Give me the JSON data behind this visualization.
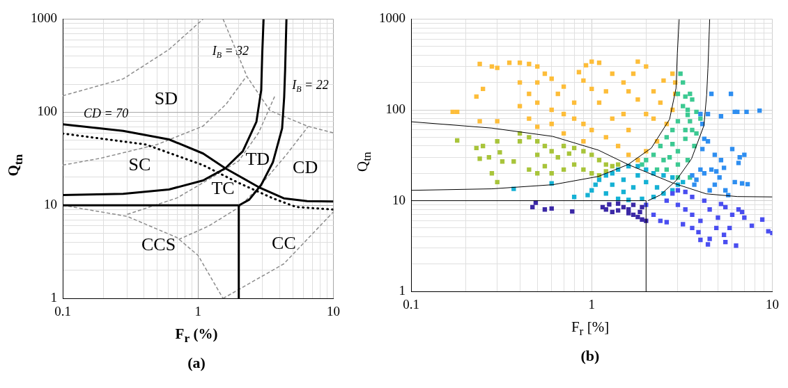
{
  "chart_data": [
    {
      "type": "line",
      "title": "(a)",
      "xlabel": "F$_{r}$ (%)",
      "ylabel": "Q$_{tn}$",
      "log": "xy",
      "grid": true,
      "xlim": [
        0.1,
        10
      ],
      "ylim": [
        1,
        1000
      ],
      "xticks": [
        0.1,
        {
          "value": 0.2,
          "label": null
        },
        {
          "value": 0.3,
          "label": null
        },
        {
          "value": 0.4,
          "label": null
        },
        {
          "value": 0.5,
          "label": null
        },
        {
          "value": 0.6,
          "label": null
        },
        {
          "value": 0.7,
          "label": null
        },
        {
          "value": 0.8,
          "label": null
        },
        {
          "value": 0.9,
          "label": null
        },
        1,
        {
          "value": 2,
          "label": null
        },
        {
          "value": 3,
          "label": null
        },
        {
          "value": 4,
          "label": null
        },
        {
          "value": 5,
          "label": null
        },
        {
          "value": 6,
          "label": null
        },
        {
          "value": 7,
          "label": null
        },
        {
          "value": 8,
          "label": null
        },
        {
          "value": 9,
          "label": null
        },
        10
      ],
      "yticks": [
        1,
        {
          "value": 2,
          "label": null
        },
        {
          "value": 3,
          "label": null
        },
        {
          "value": 4,
          "label": null
        },
        {
          "value": 5,
          "label": null
        },
        {
          "value": 6,
          "label": null
        },
        {
          "value": 7,
          "label": null
        },
        {
          "value": 8,
          "label": null
        },
        {
          "value": 9,
          "label": null
        },
        10,
        {
          "value": 20,
          "label": null
        },
        {
          "value": 30,
          "label": null
        },
        {
          "value": 40,
          "label": null
        },
        {
          "value": 50,
          "label": null
        },
        {
          "value": 60,
          "label": null
        },
        {
          "value": 70,
          "label": null
        },
        {
          "value": 80,
          "label": null
        },
        {
          "value": 90,
          "label": null
        },
        100,
        {
          "value": 200,
          "label": null
        },
        {
          "value": 300,
          "label": null
        },
        {
          "value": 400,
          "label": null
        },
        {
          "value": 500,
          "label": null
        },
        {
          "value": 600,
          "label": null
        },
        {
          "value": 700,
          "label": null
        },
        {
          "value": 800,
          "label": null
        },
        {
          "value": 900,
          "label": null
        },
        1000
      ],
      "series": [
        {
          "color": "#8c8c8c",
          "line_style": "dashed",
          "marker": "none",
          "x": [
            0.1,
            0.28,
            0.61,
            1.09
          ],
          "values": [
            150,
            228,
            471,
            1000
          ]
        },
        {
          "color": "#8c8c8c",
          "line_style": "dashed",
          "marker": "none",
          "x": [
            1.53,
            2.3,
            3.4,
            6.4,
            10
          ],
          "values": [
            1000,
            241,
            104,
            71,
            60
          ]
        },
        {
          "color": "#8c8c8c",
          "line_style": "dashed",
          "marker": "none",
          "x": [
            0.1,
            0.19,
            0.5,
            1.09,
            1.62,
            2.27
          ],
          "values": [
            27,
            32,
            45,
            71,
            123,
            241
          ]
        },
        {
          "color": "#8c8c8c",
          "line_style": "dashed",
          "marker": "none",
          "x": [
            0.3,
            0.7,
            1.2,
            2.0,
            2.8,
            3.7
          ],
          "values": [
            8,
            12,
            19,
            30,
            60,
            150
          ]
        },
        {
          "color": "#8c8c8c",
          "line_style": "dashed",
          "marker": "none",
          "x": [
            0.1,
            0.3,
            0.7,
            1.0,
            1.53
          ],
          "values": [
            10,
            7.6,
            4.5,
            2.9,
            1
          ]
        },
        {
          "color": "#8c8c8c",
          "line_style": "dashed",
          "marker": "none",
          "x": [
            0.72,
            1.2,
            2.0,
            2.8,
            4.5,
            6.5
          ],
          "values": [
            4.3,
            6,
            9.5,
            15.5,
            35,
            70
          ]
        },
        {
          "color": "#8c8c8c",
          "line_style": "dashed",
          "marker": "none",
          "x": [
            1.53,
            4.3,
            10
          ],
          "values": [
            1,
            2.35,
            8.5
          ]
        },
        {
          "color": "#000000",
          "line_style": "dotted",
          "marker": "none",
          "x": [
            0.1,
            0.41,
            1.09,
            1.98,
            3.57,
            5.3,
            10
          ],
          "values": [
            59,
            45,
            27,
            17.5,
            11.9,
            9.6,
            9.0
          ]
        },
        {
          "color": "#000000",
          "line_style": "solid",
          "marker": "none",
          "x": [
            0.1,
            0.28,
            0.61,
            1.09,
            1.59,
            2.8,
            4.3,
            6.4,
            10
          ],
          "values": [
            74,
            63,
            51,
            36,
            25,
            15.7,
            11.9,
            11.1,
            11
          ]
        },
        {
          "color": "#000000",
          "line_style": "solid",
          "marker": "none",
          "x": [
            0.1,
            0.28,
            0.61,
            1.09,
            1.59,
            2.14,
            2.7,
            2.93,
            2.98,
            3.05
          ],
          "values": [
            12.9,
            13.3,
            14.8,
            18.5,
            25,
            38,
            79,
            173,
            421,
            1000
          ]
        },
        {
          "color": "#000000",
          "line_style": "solid",
          "marker": "none",
          "x": [
            2.01,
            2.39,
            2.93,
            3.57,
            4.18,
            4.33,
            4.4,
            4.5
          ],
          "values": [
            10,
            11.5,
            16.6,
            28.9,
            67,
            146,
            285,
            1000
          ]
        },
        {
          "color": "#000000",
          "line_style": "solid",
          "marker": "none",
          "x": [
            0.1,
            2
          ],
          "values": [
            10,
            10
          ]
        },
        {
          "color": "#000000",
          "line_style": "solid",
          "marker": "none",
          "x": [
            2,
            2
          ],
          "values": [
            1,
            10
          ]
        }
      ],
      "annotations": [
        "SD",
        "SC",
        "TD",
        "CD",
        "TC",
        "CCS",
        "CC",
        "CD = 70",
        "I$_{B}$ = 32",
        "I$_{B}$ = 22"
      ]
    },
    {
      "type": "scatter",
      "title": "(b)",
      "xlabel": "F$_{r}$ [%]",
      "ylabel": "Q$_{tn}$",
      "log": "xy",
      "grid": true,
      "xlim": [
        0.1,
        10
      ],
      "ylim": [
        1,
        1000
      ],
      "xticks": [
        0.1,
        {
          "value": 0.2,
          "label": null
        },
        {
          "value": 0.3,
          "label": null
        },
        {
          "value": 0.4,
          "label": null
        },
        {
          "value": 0.5,
          "label": null
        },
        {
          "value": 0.6,
          "label": null
        },
        {
          "value": 0.7,
          "label": null
        },
        {
          "value": 0.8,
          "label": null
        },
        {
          "value": 0.9,
          "label": null
        },
        1,
        {
          "value": 2,
          "label": null
        },
        {
          "value": 3,
          "label": null
        },
        {
          "value": 4,
          "label": null
        },
        {
          "value": 5,
          "label": null
        },
        {
          "value": 6,
          "label": null
        },
        {
          "value": 7,
          "label": null
        },
        {
          "value": 8,
          "label": null
        },
        {
          "value": 9,
          "label": null
        },
        10
      ],
      "yticks": [
        1,
        {
          "value": 2,
          "label": null
        },
        {
          "value": 3,
          "label": null
        },
        {
          "value": 4,
          "label": null
        },
        {
          "value": 5,
          "label": null
        },
        {
          "value": 6,
          "label": null
        },
        {
          "value": 7,
          "label": null
        },
        {
          "value": 8,
          "label": null
        },
        {
          "value": 9,
          "label": null
        },
        10,
        {
          "value": 20,
          "label": null
        },
        {
          "value": 30,
          "label": null
        },
        {
          "value": 40,
          "label": null
        },
        {
          "value": 50,
          "label": null
        },
        {
          "value": 60,
          "label": null
        },
        {
          "value": 70,
          "label": null
        },
        {
          "value": 80,
          "label": null
        },
        {
          "value": 90,
          "label": null
        },
        100,
        {
          "value": 200,
          "label": null
        },
        {
          "value": 300,
          "label": null
        },
        {
          "value": 400,
          "label": null
        },
        {
          "value": 500,
          "label": null
        },
        {
          "value": 600,
          "label": null
        },
        {
          "value": 700,
          "label": null
        },
        {
          "value": 800,
          "label": null
        },
        {
          "value": 900,
          "label": null
        },
        1000
      ],
      "series": [
        {
          "color": "#fdbd39",
          "marker": "square",
          "x": [
            0.17,
            0.18,
            0.23,
            0.25,
            0.24,
            0.3,
            0.24,
            0.28,
            0.3,
            0.35,
            0.4,
            0.45,
            0.5,
            0.55,
            0.6,
            0.7,
            0.4,
            0.45,
            0.4,
            0.5,
            0.6,
            0.7,
            0.8,
            0.9,
            1.0,
            1.2,
            1.4,
            1.6,
            1.8,
            2.0,
            2.3,
            2.6,
            2.8,
            2.9,
            2.9,
            2.8,
            2.5,
            2.2,
            2.0,
            1.8,
            1.7,
            1.5,
            1.3,
            1.2,
            1.1,
            1.0,
            0.9,
            0.85,
            1.0,
            1.1,
            0.93,
            1.6,
            1.8,
            2.0,
            2.2,
            1.5,
            1.3,
            0.8,
            0.6,
            0.5,
            0.45,
            0.7,
            0.9,
            1.6,
            2.4,
            0.5,
            0.65
          ],
          "values": [
            95,
            95,
            140,
            170,
            75,
            75,
            320,
            300,
            290,
            330,
            330,
            320,
            300,
            250,
            220,
            180,
            200,
            150,
            110,
            120,
            100,
            90,
            80,
            70,
            60,
            50,
            40,
            32,
            28,
            35,
            45,
            70,
            100,
            150,
            200,
            250,
            210,
            160,
            300,
            340,
            250,
            200,
            250,
            160,
            120,
            170,
            210,
            260,
            340,
            330,
            310,
            160,
            130,
            90,
            80,
            90,
            80,
            120,
            70,
            65,
            80,
            55,
            45,
            60,
            120,
            200,
            150
          ]
        },
        {
          "color": "#a8c43a",
          "marker": "square",
          "x": [
            0.18,
            0.23,
            0.25,
            0.24,
            0.27,
            0.3,
            0.31,
            0.32,
            0.28,
            0.3,
            0.37,
            0.4,
            0.45,
            0.5,
            0.55,
            0.45,
            0.5,
            0.55,
            0.6,
            0.7,
            0.6,
            0.7,
            0.8,
            0.9,
            1.0,
            1.1,
            1.2,
            1.3,
            1.4,
            0.8,
            0.9,
            1.0,
            1.1,
            1.2,
            0.65,
            0.4,
            0.5,
            0.75
          ],
          "values": [
            46,
            38,
            40,
            29,
            30,
            45,
            34,
            27,
            20,
            16,
            27,
            55,
            50,
            45,
            40,
            22,
            20,
            24,
            20,
            22,
            35,
            40,
            38,
            35,
            32,
            28,
            25,
            24,
            25,
            25,
            22,
            20,
            19,
            21,
            30,
            45,
            32,
            33
          ]
        },
        {
          "color": "#3cc992",
          "marker": "square",
          "x": [
            3.1,
            3.2,
            3.0,
            3.3,
            3.5,
            3.6,
            3.4,
            3.8,
            4.0,
            3.5,
            3.0,
            2.8,
            2.6,
            2.4,
            2.2,
            2.0,
            1.9,
            2.3,
            2.6,
            3.0,
            3.4,
            3.7,
            3.8,
            3.3,
            3.0,
            2.7,
            3.5,
            3.0,
            3.2,
            3.6,
            2.5,
            3.3,
            2.8,
            3.4
          ],
          "values": [
            250,
            200,
            150,
            140,
            150,
            130,
            100,
            95,
            80,
            75,
            75,
            60,
            50,
            40,
            32,
            28,
            25,
            22,
            22,
            25,
            28,
            40,
            55,
            48,
            35,
            30,
            18,
            18,
            110,
            60,
            28,
            60,
            42,
            88
          ]
        },
        {
          "color": "#15b1d4",
          "marker": "square",
          "x": [
            0.37,
            0.6,
            0.8,
            0.95,
            1.0,
            1.05,
            1.1,
            1.2,
            1.3,
            1.4,
            1.6,
            1.8,
            2.0,
            2.2,
            2.5,
            2.8,
            3.0,
            3.2,
            2.8,
            2.5,
            2.2,
            1.9,
            1.6,
            1.4,
            1.2,
            1.3,
            1.5,
            1.7,
            2.0,
            2.3,
            1.8,
            1.5
          ],
          "values": [
            13.5,
            15.5,
            11,
            11.5,
            13,
            15,
            17,
            19,
            20,
            22,
            24,
            24,
            22,
            20,
            19,
            18,
            15,
            16,
            13,
            12,
            11,
            10.5,
            10.2,
            10.5,
            12,
            15,
            17,
            14,
            16,
            14,
            19,
            12.5
          ]
        },
        {
          "color": "#2e8ef0",
          "marker": "square",
          "x": [
            4.6,
            5.9,
            4.0,
            4.4,
            5.2,
            6.2,
            6.4,
            7.2,
            8.5,
            4.1,
            4.2,
            4.4,
            4.1,
            4.0,
            4.2,
            4.6,
            4.9,
            5.1,
            4.8,
            5.2,
            5.4,
            6.0,
            6.6,
            7.0,
            6.5,
            3.6,
            3.7,
            4.5,
            5.5,
            5.7,
            6.2,
            6.8,
            7.3,
            3.8,
            4.8
          ],
          "values": [
            150,
            150,
            90,
            90,
            85,
            95,
            95,
            95,
            98,
            70,
            48,
            45,
            37,
            22,
            20,
            22,
            21,
            18,
            32,
            28,
            23,
            37,
            30,
            32,
            26,
            19,
            15,
            13,
            13,
            11.5,
            16,
            15.5,
            15.2,
            17,
            15
          ]
        },
        {
          "color": "#4a4ef0",
          "marker": "square",
          "x": [
            2.0,
            2.2,
            2.4,
            2.6,
            2.6,
            2.8,
            3.0,
            3.3,
            3.6,
            3.0,
            3.3,
            3.6,
            3.2,
            3.6,
            3.9,
            4.0,
            4.4,
            4.5,
            4.9,
            5.0,
            5.4,
            5.5,
            5.8,
            6.3,
            6.0,
            6.5,
            6.8,
            7.0,
            5.5,
            4.5,
            4.2,
            8.8,
            9.5,
            10,
            7.7,
            4.0,
            5.2
          ],
          "values": [
            9,
            7,
            6,
            5.8,
            10,
            12,
            13,
            12.5,
            11,
            9,
            8,
            7,
            5.5,
            5,
            4.5,
            3.7,
            3.3,
            3.8,
            5,
            6.5,
            4.2,
            3.5,
            5,
            3.2,
            7,
            8,
            7.5,
            6.5,
            8.5,
            8,
            10,
            6.2,
            4.6,
            4.4,
            5.3,
            6,
            9.2
          ]
        },
        {
          "color": "#3b28a6",
          "marker": "square",
          "x": [
            0.47,
            0.49,
            0.55,
            0.6,
            0.78,
            1.15,
            1.2,
            1.3,
            1.4,
            1.5,
            1.6,
            1.7,
            1.8,
            1.9,
            2.0,
            1.9,
            1.7,
            1.4,
            1.25,
            1.6,
            1.85
          ],
          "values": [
            8.5,
            9.5,
            8,
            8.2,
            7.6,
            8.5,
            8,
            7.5,
            7.8,
            8.5,
            7.3,
            7,
            6.6,
            6.2,
            6.0,
            8.5,
            9,
            9.3,
            9.1,
            8,
            7.5
          ]
        },
        {
          "type": "line",
          "color": "#000000",
          "line_style": "solid",
          "marker": "none",
          "x": [
            0.1,
            0.28,
            0.61,
            1.09,
            1.59,
            2.8,
            4.3,
            6.4,
            10
          ],
          "values": [
            74,
            63,
            51,
            36,
            25,
            15.7,
            11.9,
            11.1,
            11
          ]
        },
        {
          "type": "line",
          "color": "#000000",
          "line_style": "solid",
          "marker": "none",
          "x": [
            0.1,
            0.28,
            0.61,
            1.09,
            1.59,
            2.14,
            2.7,
            2.93,
            2.98,
            3.05
          ],
          "values": [
            13,
            13.5,
            15,
            18.5,
            25,
            38,
            79,
            173,
            421,
            1000
          ]
        },
        {
          "type": "line",
          "color": "#000000",
          "line_style": "solid",
          "marker": "none",
          "x": [
            2.05,
            2.39,
            2.93,
            3.57,
            4.18,
            4.33,
            4.4,
            4.5
          ],
          "values": [
            10,
            11.5,
            16.6,
            28.9,
            67,
            146,
            285,
            1000
          ]
        },
        {
          "type": "line",
          "color": "#000000",
          "line_style": "solid",
          "marker": "none",
          "x": [
            0.1,
            2
          ],
          "values": [
            10,
            10
          ]
        },
        {
          "type": "line",
          "color": "#000000",
          "line_style": "solid",
          "marker": "none",
          "x": [
            2,
            2
          ],
          "values": [
            1,
            10
          ]
        }
      ]
    }
  ]
}
